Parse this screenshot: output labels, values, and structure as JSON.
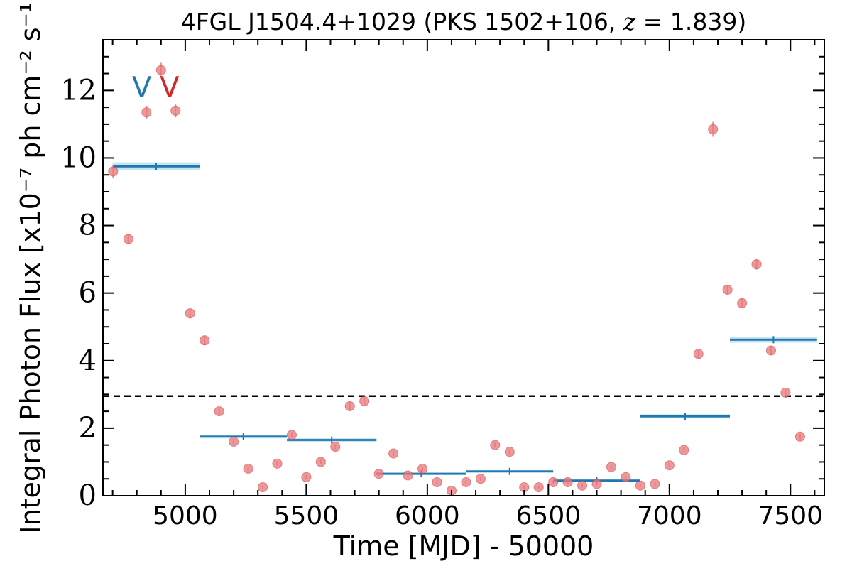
{
  "chart_data": {
    "type": "scatter",
    "title": "4FGL J1504.4+1029 (PKS 1502+106, z = 1.839)",
    "title_parts": {
      "main": "4FGL J1504.4+1029 (PKS 1502+106, ",
      "z": "z",
      "eq": " = 1.839",
      "close": ")"
    },
    "xlabel": "Time [MJD] - 50000",
    "ylabel": "Integral Photon Flux [x10⁻⁷ ph cm⁻² s⁻¹]",
    "xlim": [
      4660,
      7640
    ],
    "ylim": [
      0,
      13.5
    ],
    "x_ticks": [
      5000,
      5500,
      6000,
      6500,
      7000,
      7500
    ],
    "x_tick_labels": [
      "5000",
      "5500",
      "6000",
      "6500",
      "7000",
      "7500"
    ],
    "y_ticks": [
      0,
      2,
      4,
      6,
      8,
      10,
      12
    ],
    "y_tick_labels": [
      "0",
      "2",
      "4",
      "6",
      "8",
      "10",
      "12"
    ],
    "grid": false,
    "colors": {
      "points": "#e8787c",
      "points_edge": "#d94b50",
      "bins": "#1f77b4",
      "bins_band": "#add8e6",
      "reference_line": "#000000",
      "marker_blue": "#1f77b4",
      "marker_red": "#d62728"
    },
    "markers": [
      {
        "label": "V",
        "x": 4820,
        "y": 12.1,
        "color": "#1f77b4"
      },
      {
        "label": "V",
        "x": 4935,
        "y": 12.1,
        "color": "#d62728"
      }
    ],
    "reference_line": {
      "y": 2.95,
      "style": "dashed"
    },
    "series": [
      {
        "kind": "points",
        "x": [
          4702,
          4765,
          4840,
          4900,
          4960,
          5020,
          5080,
          5140,
          5200,
          5260,
          5320,
          5380,
          5440,
          5500,
          5560,
          5620,
          5680,
          5740,
          5800,
          5860,
          5920,
          5980,
          6040,
          6100,
          6160,
          6220,
          6280,
          6340,
          6400,
          6460,
          6520,
          6580,
          6640,
          6700,
          6760,
          6820,
          6880,
          6940,
          7000,
          7060,
          7120,
          7180,
          7240,
          7300,
          7360,
          7420,
          7480,
          7540
        ],
        "y": [
          9.6,
          7.6,
          11.35,
          12.6,
          11.4,
          5.4,
          4.6,
          2.5,
          1.6,
          0.8,
          0.25,
          0.95,
          1.8,
          0.55,
          1.0,
          1.45,
          2.65,
          2.8,
          0.65,
          1.25,
          0.6,
          0.8,
          0.4,
          0.15,
          0.4,
          0.5,
          1.5,
          1.3,
          0.25,
          0.25,
          0.4,
          0.4,
          0.3,
          0.35,
          0.85,
          0.55,
          0.3,
          0.35,
          0.9,
          1.35,
          4.2,
          10.85,
          6.1,
          5.7,
          6.85,
          4.3,
          3.05,
          1.75
        ],
        "yerr": [
          0.18,
          0.15,
          0.2,
          0.22,
          0.2,
          0.15,
          0.14,
          0.1,
          0.08,
          0.06,
          0.05,
          0.07,
          0.08,
          0.06,
          0.07,
          0.08,
          0.12,
          0.12,
          0.06,
          0.07,
          0.06,
          0.06,
          0.05,
          0.04,
          0.05,
          0.05,
          0.08,
          0.08,
          0.05,
          0.05,
          0.05,
          0.05,
          0.05,
          0.05,
          0.06,
          0.05,
          0.05,
          0.05,
          0.06,
          0.07,
          0.12,
          0.22,
          0.14,
          0.14,
          0.15,
          0.12,
          0.1,
          0.08
        ]
      },
      {
        "kind": "bins",
        "segments": [
          {
            "x0": 4700,
            "x1": 5060,
            "y": 9.75,
            "yerr": 0.1
          },
          {
            "x0": 5060,
            "x1": 5420,
            "y": 1.75,
            "yerr": 0.03
          },
          {
            "x0": 5420,
            "x1": 5790,
            "y": 1.65,
            "yerr": 0.03
          },
          {
            "x0": 5790,
            "x1": 6160,
            "y": 0.65,
            "yerr": 0.02
          },
          {
            "x0": 6160,
            "x1": 6520,
            "y": 0.72,
            "yerr": 0.02
          },
          {
            "x0": 6520,
            "x1": 6880,
            "y": 0.45,
            "yerr": 0.02
          },
          {
            "x0": 6880,
            "x1": 7250,
            "y": 2.35,
            "yerr": 0.04
          },
          {
            "x0": 7250,
            "x1": 7610,
            "y": 4.62,
            "yerr": 0.07
          }
        ]
      }
    ]
  }
}
